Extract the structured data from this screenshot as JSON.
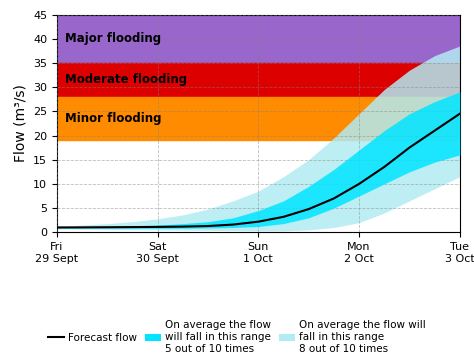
{
  "chart_data": {
    "type": "fan",
    "ylabel": "Flow (m³/s)",
    "x": [
      0,
      0.25,
      0.5,
      0.75,
      1.0,
      1.25,
      1.5,
      1.75,
      2.0,
      2.25,
      2.5,
      2.75,
      3.0,
      3.25,
      3.5,
      3.75,
      4.0
    ],
    "xlim": [
      0,
      4
    ],
    "xticks": [
      {
        "value": 0,
        "label": "Fri\n29 Sept"
      },
      {
        "value": 1,
        "label": "Sat\n30 Sept"
      },
      {
        "value": 2,
        "label": "Sun\n1 Oct"
      },
      {
        "value": 3,
        "label": "Mon\n2 Oct"
      },
      {
        "value": 4,
        "label": "Tue\n3 Oct"
      }
    ],
    "ylim": [
      0,
      45
    ],
    "yticks": [
      0,
      5,
      10,
      15,
      20,
      25,
      30,
      35,
      40,
      45
    ],
    "grid": true,
    "legend": "lower center",
    "zones": [
      {
        "name": "Major flooding",
        "from": 35,
        "to": 45,
        "color": "#9966CC"
      },
      {
        "name": "Moderate flooding",
        "from": 28,
        "to": 35,
        "color": "#DD0000"
      },
      {
        "name": "Minor flooding",
        "from": 19,
        "to": 28,
        "color": "#FF8C00"
      }
    ],
    "series": [
      {
        "name": "Forecast flow",
        "type": "line",
        "color": "#000000",
        "values": [
          1.0,
          1.02,
          1.05,
          1.08,
          1.12,
          1.18,
          1.3,
          1.6,
          2.2,
          3.2,
          4.8,
          7.0,
          10.0,
          13.5,
          17.5,
          21.0,
          24.5
        ]
      },
      {
        "name": "On average the flow\nwill fall in this range\n5 out of 10 times",
        "type": "band",
        "color": "#00E5FF",
        "lower": [
          0.9,
          0.9,
          0.88,
          0.85,
          0.83,
          0.85,
          0.9,
          1.0,
          1.2,
          1.8,
          3.0,
          5.0,
          7.5,
          10.0,
          12.5,
          14.5,
          16.0
        ],
        "upper": [
          1.1,
          1.15,
          1.2,
          1.3,
          1.5,
          1.8,
          2.2,
          3.0,
          4.5,
          6.5,
          9.5,
          13.0,
          17.0,
          21.0,
          24.5,
          27.0,
          29.0
        ]
      },
      {
        "name": "On average the flow will\nfall in this range\n8 out of 10 times",
        "type": "band",
        "color": "#B2EBF2",
        "lower": [
          0.7,
          0.65,
          0.6,
          0.55,
          0.5,
          0.45,
          0.4,
          0.35,
          0.3,
          0.3,
          0.5,
          1.0,
          2.0,
          4.0,
          6.5,
          9.0,
          11.5
        ],
        "upper": [
          1.3,
          1.5,
          1.8,
          2.2,
          2.8,
          3.6,
          4.8,
          6.5,
          8.5,
          11.5,
          15.0,
          19.5,
          24.5,
          29.5,
          33.5,
          36.5,
          38.5
        ]
      }
    ]
  }
}
